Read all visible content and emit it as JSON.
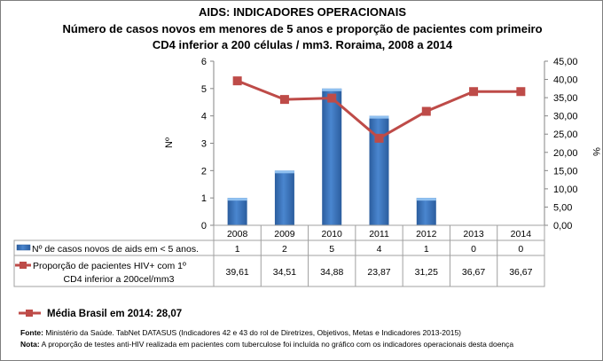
{
  "title": "AIDS: INDICADORES OPERACIONAIS",
  "subtitle_line1": "Número de casos novos em menores de 5 anos e proporção de pacientes com primeiro",
  "subtitle_line2": "CD4 inferior a 200 células / mm3. Roraima, 2008 a 2014",
  "chart_data": {
    "type": "bar+line",
    "categories": [
      "2008",
      "2009",
      "2010",
      "2011",
      "2012",
      "2013",
      "2014"
    ],
    "series": [
      {
        "name": "Nº de casos novos de aids em < 5 anos.",
        "type": "bar",
        "axis": "left",
        "color": "#3e7cc4",
        "values": [
          1,
          2,
          5,
          4,
          1,
          0,
          0
        ],
        "labels": [
          "1",
          "2",
          "5",
          "4",
          "1",
          "0",
          "0"
        ]
      },
      {
        "name_line1": "Proporção de pacientes HIV+ com 1º",
        "name_line2": "CD4 inferior a 200cel/mm3",
        "type": "line",
        "axis": "right",
        "color": "#be4b48",
        "values": [
          39.61,
          34.51,
          34.88,
          23.87,
          31.25,
          36.67,
          36.67
        ],
        "labels": [
          "39,61",
          "34,51",
          "34,88",
          "23,87",
          "31,25",
          "36,67",
          "36,67"
        ]
      }
    ],
    "ylabel_left": "Nº",
    "ylabel_right": "%",
    "ylim_left": [
      0,
      6
    ],
    "ylim_right": [
      0,
      45
    ],
    "yticks_left": [
      "0",
      "1",
      "2",
      "3",
      "4",
      "5",
      "6"
    ],
    "yticks_right": [
      "0,00",
      "5,00",
      "10,00",
      "15,00",
      "20,00",
      "25,00",
      "30,00",
      "35,00",
      "40,00",
      "45,00"
    ],
    "grid": false,
    "legend": "data-table"
  },
  "reference": {
    "label": "Média Brasil em 2014: 28,07",
    "color": "#be4b48"
  },
  "source": {
    "label": "Fonte:",
    "text": " Ministério da Saúde. TabNet DATASUS (Indicadores 42 e 43 do rol de Diretrizes, Objetivos, Metas e Indicadores 2013-2015)"
  },
  "note": {
    "label": "Nota:",
    "text": " A proporção de testes anti-HIV realizada em pacientes com tuberculose foi incluída no gráfico com os indicadores operacionais desta doença"
  }
}
